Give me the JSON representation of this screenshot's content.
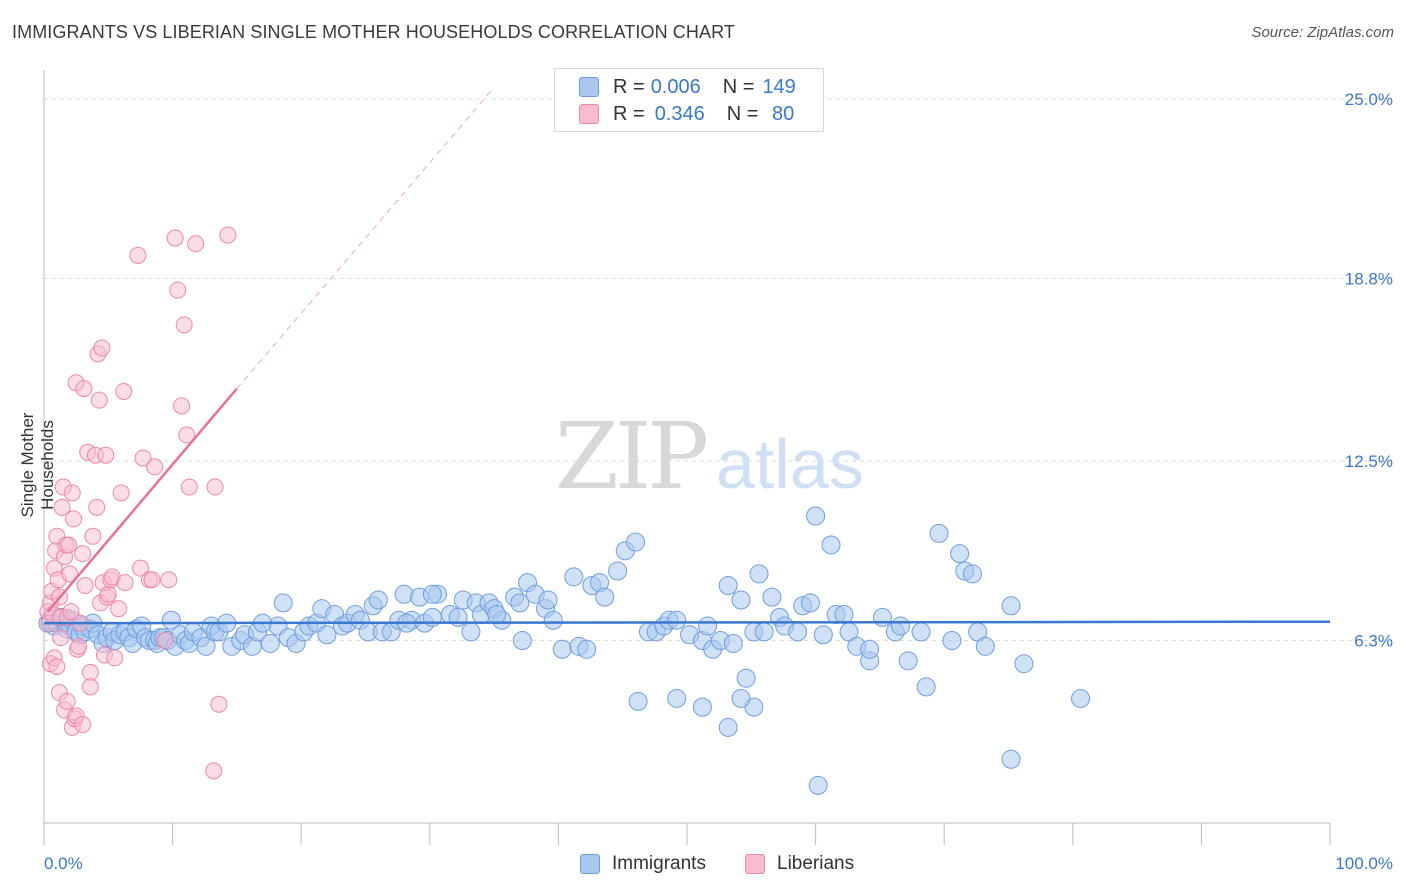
{
  "title": "IMMIGRANTS VS LIBERIAN SINGLE MOTHER HOUSEHOLDS CORRELATION CHART",
  "source": "Source: ZipAtlas.com",
  "watermark": {
    "zip": "ZIP",
    "atlas": "atlas"
  },
  "legend": {
    "rows": [
      {
        "r_label": "R = ",
        "r_value": "0.006",
        "n_label": "N = ",
        "n_value": "149"
      },
      {
        "r_label": "R = ",
        "r_value": "0.346",
        "n_label": "N = ",
        "n_value": " 80"
      }
    ]
  },
  "bottom_legend": [
    "Immigrants",
    "Liberians"
  ],
  "colors": {
    "immigrants_fill": "#aac8ef",
    "immigrants_stroke": "#6e9fe0",
    "immigrants_line": "#3a78d0",
    "liberians_fill": "#f6bcd0",
    "liberians_stroke": "#ee88aa",
    "liberians_line": "#e8709a",
    "tick_label": "#3a78c8",
    "grid": "#dcdcdc"
  },
  "chart_data": {
    "type": "scatter",
    "ylabel": "Single Mother Households",
    "xlim": [
      0,
      100
    ],
    "ylim": [
      0,
      26
    ],
    "x_tick_labels": [
      "0.0%",
      "100.0%"
    ],
    "y_ticks": [
      6.3,
      12.5,
      18.8,
      25.0
    ],
    "y_tick_labels": [
      "6.3%",
      "12.5%",
      "18.8%",
      "25.0%"
    ],
    "grid": true,
    "legend_placement": "top-center",
    "series": [
      {
        "name": "Immigrants",
        "trend": {
          "x": [
            0,
            100
          ],
          "y": [
            6.9,
            6.95
          ]
        },
        "points": [
          [
            0.3,
            6.9
          ],
          [
            0.5,
            7.0
          ],
          [
            0.8,
            6.8
          ],
          [
            1.0,
            6.9
          ],
          [
            1.3,
            7.1
          ],
          [
            1.6,
            6.9
          ],
          [
            1.8,
            6.7
          ],
          [
            2.0,
            6.8
          ],
          [
            2.2,
            7.0
          ],
          [
            2.5,
            6.6
          ],
          [
            2.8,
            6.5
          ],
          [
            3.0,
            6.8
          ],
          [
            3.2,
            6.6
          ],
          [
            3.6,
            6.7
          ],
          [
            3.8,
            6.9
          ],
          [
            4.2,
            6.5
          ],
          [
            4.6,
            6.2
          ],
          [
            4.9,
            6.4
          ],
          [
            5.3,
            6.6
          ],
          [
            5.5,
            6.3
          ],
          [
            5.9,
            6.5
          ],
          [
            6.3,
            6.6
          ],
          [
            6.6,
            6.4
          ],
          [
            6.9,
            6.2
          ],
          [
            7.2,
            6.7
          ],
          [
            7.6,
            6.8
          ],
          [
            7.9,
            6.4
          ],
          [
            8.2,
            6.3
          ],
          [
            8.6,
            6.3
          ],
          [
            8.8,
            6.2
          ],
          [
            9.0,
            6.4
          ],
          [
            9.3,
            6.4
          ],
          [
            9.6,
            6.3
          ],
          [
            9.9,
            7.0
          ],
          [
            10.2,
            6.1
          ],
          [
            10.6,
            6.5
          ],
          [
            11.0,
            6.3
          ],
          [
            11.3,
            6.2
          ],
          [
            11.6,
            6.6
          ],
          [
            12.2,
            6.4
          ],
          [
            12.6,
            6.1
          ],
          [
            13.0,
            6.8
          ],
          [
            13.3,
            6.6
          ],
          [
            13.6,
            6.6
          ],
          [
            14.2,
            6.9
          ],
          [
            14.6,
            6.1
          ],
          [
            15.3,
            6.3
          ],
          [
            15.6,
            6.5
          ],
          [
            16.2,
            6.1
          ],
          [
            16.6,
            6.6
          ],
          [
            17.0,
            6.9
          ],
          [
            17.6,
            6.2
          ],
          [
            18.2,
            6.8
          ],
          [
            18.6,
            7.6
          ],
          [
            19.0,
            6.4
          ],
          [
            19.6,
            6.2
          ],
          [
            20.2,
            6.6
          ],
          [
            20.6,
            6.8
          ],
          [
            21.2,
            6.9
          ],
          [
            21.6,
            7.4
          ],
          [
            22.0,
            6.5
          ],
          [
            22.6,
            7.2
          ],
          [
            23.2,
            6.8
          ],
          [
            23.6,
            6.9
          ],
          [
            24.2,
            7.2
          ],
          [
            24.6,
            7.0
          ],
          [
            25.2,
            6.6
          ],
          [
            25.6,
            7.5
          ],
          [
            26.0,
            7.7
          ],
          [
            26.3,
            6.6
          ],
          [
            27.0,
            6.6
          ],
          [
            27.6,
            7.0
          ],
          [
            28.0,
            7.9
          ],
          [
            28.6,
            7.0
          ],
          [
            29.2,
            7.8
          ],
          [
            29.6,
            6.9
          ],
          [
            30.2,
            7.1
          ],
          [
            30.6,
            7.9
          ],
          [
            31.6,
            7.2
          ],
          [
            32.2,
            7.1
          ],
          [
            32.6,
            7.7
          ],
          [
            33.6,
            7.6
          ],
          [
            34.0,
            7.2
          ],
          [
            34.6,
            7.6
          ],
          [
            35.0,
            7.4
          ],
          [
            35.6,
            7.0
          ],
          [
            36.6,
            7.8
          ],
          [
            37.0,
            7.6
          ],
          [
            37.6,
            8.3
          ],
          [
            38.2,
            7.9
          ],
          [
            39.0,
            7.4
          ],
          [
            39.6,
            7.0
          ],
          [
            40.3,
            6.0
          ],
          [
            41.2,
            8.5
          ],
          [
            41.6,
            6.1
          ],
          [
            42.6,
            8.2
          ],
          [
            43.2,
            8.3
          ],
          [
            43.6,
            7.8
          ],
          [
            44.6,
            8.7
          ],
          [
            45.2,
            9.4
          ],
          [
            46.0,
            9.7
          ],
          [
            47.0,
            6.6
          ],
          [
            47.6,
            6.6
          ],
          [
            48.2,
            6.8
          ],
          [
            48.6,
            7.0
          ],
          [
            49.2,
            7.0
          ],
          [
            50.2,
            6.5
          ],
          [
            51.2,
            6.3
          ],
          [
            51.6,
            6.8
          ],
          [
            52.0,
            6.0
          ],
          [
            52.6,
            6.3
          ],
          [
            53.2,
            8.2
          ],
          [
            53.6,
            6.2
          ],
          [
            54.2,
            7.7
          ],
          [
            54.6,
            5.0
          ],
          [
            55.2,
            6.6
          ],
          [
            55.6,
            8.6
          ],
          [
            56.0,
            6.6
          ],
          [
            56.6,
            7.8
          ],
          [
            57.2,
            7.1
          ],
          [
            57.6,
            6.8
          ],
          [
            58.6,
            6.6
          ],
          [
            59.0,
            7.5
          ],
          [
            59.6,
            7.6
          ],
          [
            60.0,
            10.6
          ],
          [
            60.6,
            6.5
          ],
          [
            61.2,
            9.6
          ],
          [
            61.6,
            7.2
          ],
          [
            62.2,
            7.2
          ],
          [
            62.6,
            6.6
          ],
          [
            63.2,
            6.1
          ],
          [
            64.2,
            5.6
          ],
          [
            65.2,
            7.1
          ],
          [
            66.2,
            6.6
          ],
          [
            66.6,
            6.8
          ],
          [
            67.2,
            5.6
          ],
          [
            68.2,
            6.6
          ],
          [
            68.6,
            4.7
          ],
          [
            69.6,
            10.0
          ],
          [
            70.6,
            6.3
          ],
          [
            71.2,
            9.3
          ],
          [
            71.6,
            8.7
          ],
          [
            72.2,
            8.6
          ],
          [
            72.6,
            6.6
          ],
          [
            73.2,
            6.1
          ],
          [
            75.2,
            7.5
          ],
          [
            76.2,
            5.5
          ],
          [
            80.6,
            4.3
          ],
          [
            64.2,
            6.0
          ],
          [
            60.2,
            1.3
          ],
          [
            55.2,
            4.0
          ],
          [
            53.2,
            3.3
          ],
          [
            51.2,
            4.0
          ],
          [
            49.2,
            4.3
          ],
          [
            46.2,
            4.2
          ],
          [
            42.2,
            6.0
          ],
          [
            39.2,
            7.7
          ],
          [
            37.2,
            6.3
          ],
          [
            35.2,
            7.2
          ],
          [
            33.2,
            6.6
          ],
          [
            30.2,
            7.9
          ],
          [
            28.2,
            6.9
          ],
          [
            75.2,
            2.2
          ],
          [
            54.2,
            4.3
          ]
        ]
      },
      {
        "name": "Liberians",
        "trend": {
          "x": [
            0.3,
            15.0
          ],
          "y": [
            7.3,
            15.0
          ]
        },
        "trend_extension": {
          "x": [
            15.0,
            35.0
          ],
          "y": [
            15.0,
            25.4
          ]
        },
        "points": [
          [
            0.3,
            7.3
          ],
          [
            0.4,
            6.9
          ],
          [
            0.5,
            7.6
          ],
          [
            0.6,
            8.0
          ],
          [
            0.7,
            7.2
          ],
          [
            0.8,
            8.8
          ],
          [
            0.9,
            9.4
          ],
          [
            1.0,
            9.9
          ],
          [
            1.1,
            8.4
          ],
          [
            1.2,
            7.8
          ],
          [
            1.3,
            7.1
          ],
          [
            1.4,
            10.9
          ],
          [
            1.5,
            11.6
          ],
          [
            1.6,
            9.2
          ],
          [
            1.7,
            9.6
          ],
          [
            1.8,
            7.1
          ],
          [
            1.9,
            9.6
          ],
          [
            2.0,
            8.6
          ],
          [
            2.1,
            7.3
          ],
          [
            2.2,
            11.4
          ],
          [
            2.3,
            10.5
          ],
          [
            2.5,
            15.2
          ],
          [
            2.6,
            6.0
          ],
          [
            2.7,
            6.1
          ],
          [
            2.8,
            6.9
          ],
          [
            3.0,
            9.3
          ],
          [
            3.1,
            15.0
          ],
          [
            3.2,
            8.2
          ],
          [
            3.4,
            12.8
          ],
          [
            3.6,
            5.2
          ],
          [
            3.8,
            9.9
          ],
          [
            4.0,
            12.7
          ],
          [
            4.1,
            10.9
          ],
          [
            4.2,
            16.2
          ],
          [
            4.3,
            14.6
          ],
          [
            4.4,
            7.6
          ],
          [
            4.5,
            16.4
          ],
          [
            4.6,
            8.3
          ],
          [
            4.7,
            5.8
          ],
          [
            4.8,
            12.7
          ],
          [
            4.9,
            7.8
          ],
          [
            5.0,
            7.9
          ],
          [
            5.2,
            8.4
          ],
          [
            5.3,
            8.5
          ],
          [
            5.5,
            5.7
          ],
          [
            5.8,
            7.4
          ],
          [
            6.0,
            11.4
          ],
          [
            6.2,
            14.9
          ],
          [
            6.3,
            8.3
          ],
          [
            7.3,
            19.6
          ],
          [
            7.5,
            8.8
          ],
          [
            7.7,
            12.6
          ],
          [
            8.2,
            8.4
          ],
          [
            8.4,
            8.4
          ],
          [
            8.6,
            12.3
          ],
          [
            9.4,
            6.3
          ],
          [
            9.7,
            8.4
          ],
          [
            10.2,
            20.2
          ],
          [
            10.4,
            18.4
          ],
          [
            10.7,
            14.4
          ],
          [
            10.9,
            17.2
          ],
          [
            11.1,
            13.4
          ],
          [
            11.3,
            11.6
          ],
          [
            11.8,
            20.0
          ],
          [
            13.3,
            11.6
          ],
          [
            14.3,
            20.3
          ],
          [
            0.5,
            5.5
          ],
          [
            0.8,
            5.7
          ],
          [
            1.2,
            4.5
          ],
          [
            1.6,
            3.9
          ],
          [
            1.8,
            4.2
          ],
          [
            2.2,
            3.3
          ],
          [
            2.4,
            3.6
          ],
          [
            2.5,
            3.7
          ],
          [
            1.0,
            5.4
          ],
          [
            1.3,
            6.4
          ],
          [
            3.6,
            4.7
          ],
          [
            3.0,
            3.4
          ],
          [
            13.2,
            1.8
          ],
          [
            13.6,
            4.1
          ]
        ]
      }
    ]
  }
}
